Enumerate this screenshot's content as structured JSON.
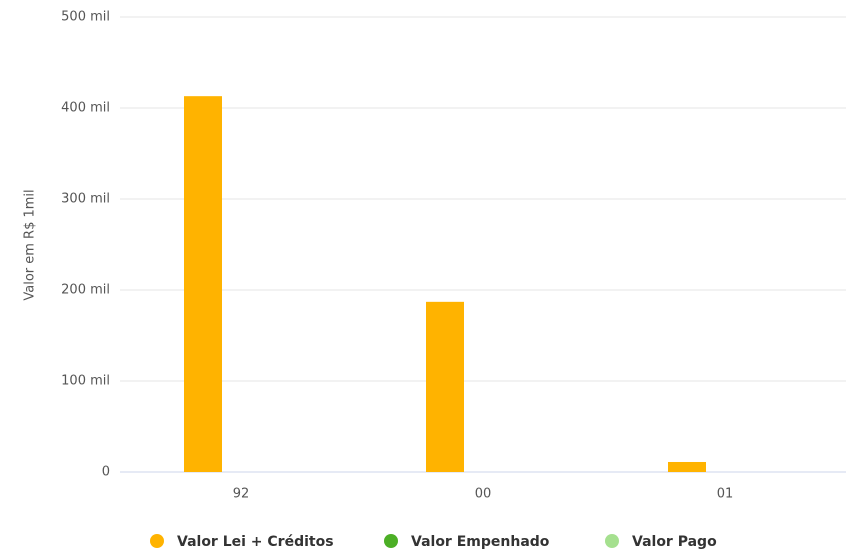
{
  "chart_data": {
    "type": "bar",
    "y_label": "Valor em R$ 1mil",
    "categories": [
      "92",
      "00",
      "01"
    ],
    "series": [
      {
        "name": "Valor Lei + Créditos",
        "color": "#ffb300",
        "values": [
          413000,
          187000,
          11000
        ]
      },
      {
        "name": "Valor Empenhado",
        "color": "#4caf26",
        "values": [
          0,
          0,
          0
        ]
      },
      {
        "name": "Valor Pago",
        "color": "#a5e08f",
        "values": [
          0,
          0,
          0
        ]
      }
    ],
    "ylim": [
      0,
      500000
    ],
    "yticks": [
      0,
      {
        "value": 100000,
        "label": "100 mil"
      },
      {
        "value": 200000,
        "label": "200 mil"
      },
      {
        "value": 300000,
        "label": "300 mil"
      },
      {
        "value": 400000,
        "label": "400 mil"
      },
      {
        "value": 500000,
        "label": "500 mil"
      }
    ],
    "grid": true,
    "legend": "bottom"
  }
}
